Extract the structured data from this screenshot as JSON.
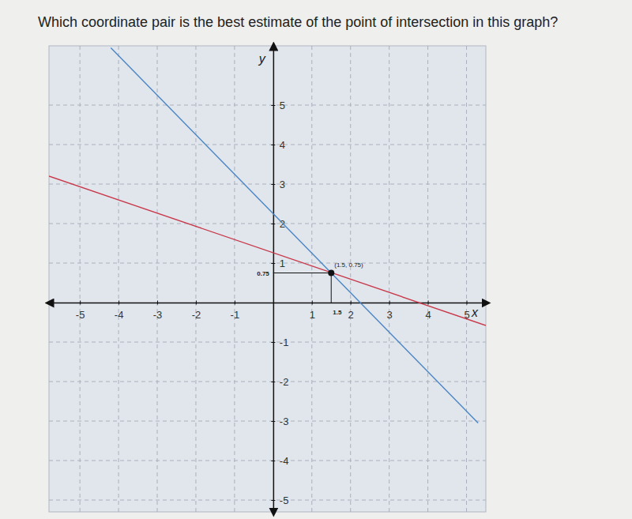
{
  "chart_data": {
    "type": "line",
    "title": "Which coordinate pair is the best estimate of the point of intersection in this graph?",
    "x_label": "x",
    "y_label": "y",
    "xlim": [
      -5.8,
      5.5
    ],
    "ylim": [
      -5.3,
      6.5
    ],
    "xticks": [
      -5,
      -4,
      -3,
      -2,
      -1,
      1,
      2,
      3,
      4,
      5
    ],
    "yticks": [
      -5,
      -4,
      -3,
      -2,
      -1,
      1,
      2,
      3,
      4,
      5
    ],
    "grid": true,
    "series": [
      {
        "color": "#4a86c5",
        "x": [
          -4.2,
          5.3
        ],
        "values": [
          6.45,
          -3.05
        ]
      },
      {
        "color": "#c8394a",
        "x": [
          -5.8,
          5.5
        ],
        "values": [
          3.2,
          -0.58
        ]
      }
    ],
    "point": {
      "x": 1.5,
      "y": 0.75,
      "label": "(1.5, 0.75)",
      "x_label": "1.5",
      "y_label": "0.75"
    }
  }
}
